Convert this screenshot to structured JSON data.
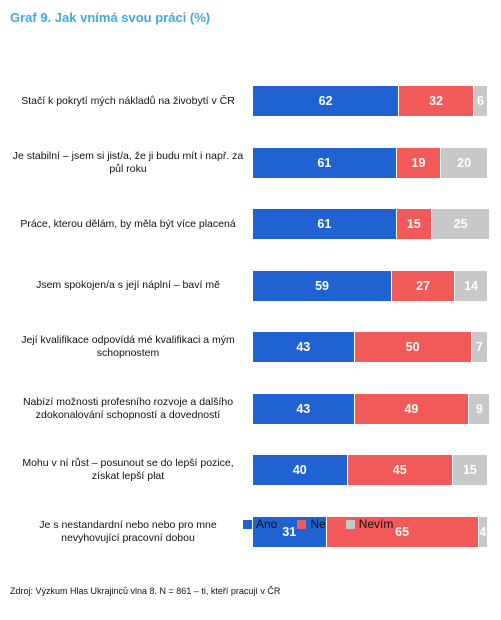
{
  "title": "Graf 9. Jak vnímá svou práci (%)",
  "source": "Zdroj: Výzkum Hlas Ukrajinců vlna 8. N = 861 – ti, kteří pracují v ČR",
  "colors": {
    "Ano": "#2062D2",
    "Ne": "#F25A5A",
    "Nevím": "#C8C8C8"
  },
  "chart_data": {
    "type": "bar",
    "orientation": "horizontal",
    "stacked": true,
    "categories": [
      "Stačí k pokrytí mých nákladů na živobytí v ČR",
      "Je stabilní – jsem si jist/a, že ji budu mít i např. za půl roku",
      "Práce, kterou dělám, by měla být více placená",
      "Jsem spokojen/a s její náplní – baví mě",
      "Její kvalifikace odpovídá mé kvalifikaci a mým schopnostem",
      "Nabízí možnosti profesního rozvoje a dalšího zdokonalování schopností a dovedností",
      "Mohu v ní růst – posunout se do lepší pozice, získat lepší plat",
      "Je s nestandardní nebo nebo pro mne nevyhovující pracovní dobou"
    ],
    "series": [
      {
        "name": "Ano",
        "values": [
          62,
          61,
          61,
          59,
          43,
          43,
          40,
          31
        ]
      },
      {
        "name": "Ne",
        "values": [
          32,
          19,
          15,
          27,
          50,
          49,
          45,
          65
        ]
      },
      {
        "name": "Nevím",
        "values": [
          6,
          20,
          25,
          14,
          7,
          9,
          15,
          4
        ]
      }
    ],
    "xlim": [
      0,
      100
    ],
    "grid": false,
    "legend": "bottom"
  }
}
